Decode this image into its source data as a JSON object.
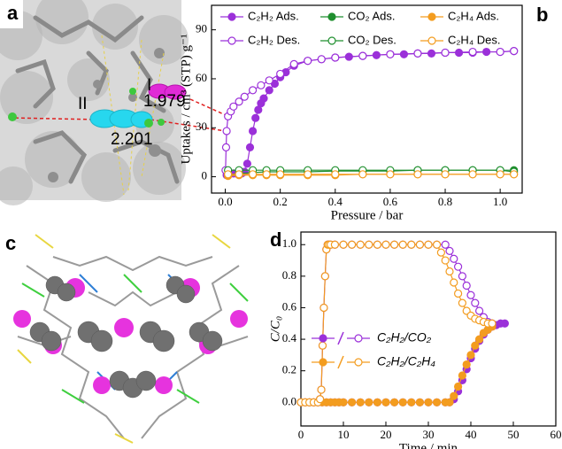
{
  "panels": {
    "labels": [
      "a",
      "b",
      "c",
      "d"
    ],
    "annotations": [
      "II",
      "I",
      "1.979",
      "2.201"
    ]
  },
  "chart_data": [
    {
      "type": "line",
      "x_label": "Pressure / bar",
      "y_label": "Uptakes / cm³ (STP) g⁻¹",
      "xlim": [
        -0.05,
        1.08
      ],
      "ylim": [
        -10,
        105
      ],
      "xticks": [
        {
          "value": 0,
          "label": "0.0"
        },
        {
          "value": 0.2,
          "label": "0.2"
        },
        {
          "value": 0.4,
          "label": "0.4"
        },
        {
          "value": 0.6,
          "label": "0.6"
        },
        {
          "value": 0.8,
          "label": "0.8"
        },
        {
          "value": 1,
          "label": "1.0"
        }
      ],
      "yticks": [
        0,
        30,
        60,
        90
      ],
      "series": [
        {
          "name": "C₂H₂ Ads.",
          "color": "#9b30d9",
          "marker": "filled",
          "x": [
            0.005,
            0.01,
            0.02,
            0.03,
            0.04,
            0.05,
            0.06,
            0.07,
            0.08,
            0.09,
            0.1,
            0.11,
            0.12,
            0.13,
            0.14,
            0.16,
            0.18,
            0.2,
            0.22,
            0.25,
            0.3,
            0.35,
            0.4,
            0.45,
            0.5,
            0.55,
            0.6,
            0.65,
            0.7,
            0.75,
            0.8,
            0.85,
            0.9,
            0.95,
            1.0,
            1.05
          ],
          "values": [
            1,
            2,
            2,
            2,
            2,
            2,
            2,
            3,
            8,
            18,
            28,
            36,
            41,
            45,
            48,
            53,
            57,
            61,
            64,
            68,
            71,
            72,
            73,
            73.5,
            74,
            74.5,
            75,
            75,
            75.5,
            75.5,
            76,
            76,
            76,
            76.5,
            76.5,
            77
          ]
        },
        {
          "name": "CO₂ Ads.",
          "color": "#1f8f2e",
          "marker": "filled",
          "x": [
            0.01,
            0.05,
            0.1,
            0.15,
            0.2,
            0.3,
            0.4,
            0.5,
            0.6,
            0.7,
            0.8,
            0.9,
            1.0,
            1.05
          ],
          "values": [
            1,
            2,
            2.5,
            3,
            3,
            3,
            3.5,
            3.5,
            3.5,
            4,
            4,
            4,
            4,
            4
          ]
        },
        {
          "name": "C₂H₄ Ads.",
          "color": "#f39c1f",
          "marker": "filled",
          "x": [
            0.01,
            0.05,
            0.1,
            0.15,
            0.2,
            0.3,
            0.4,
            0.5,
            0.6,
            0.7,
            0.8,
            0.9,
            1.0,
            1.05
          ],
          "values": [
            0.5,
            1,
            1,
            1,
            1,
            1,
            1,
            1.5,
            1.5,
            1.5,
            1.5,
            1.5,
            1.5,
            1.5
          ]
        },
        {
          "name": "C₂H₂ Des.",
          "color": "#9b30d9",
          "marker": "open",
          "x": [
            0.001,
            0.003,
            0.005,
            0.01,
            0.02,
            0.03,
            0.05,
            0.07,
            0.1,
            0.13,
            0.16,
            0.2,
            0.25,
            0.3,
            0.35,
            0.4,
            0.5,
            0.6,
            0.7,
            0.8,
            0.9,
            1.0,
            1.05
          ],
          "values": [
            4,
            18,
            28,
            37,
            40,
            43,
            46,
            49,
            53,
            56,
            59,
            63,
            69,
            71,
            72,
            73,
            74,
            75,
            75.5,
            76,
            76.5,
            76.5,
            77
          ]
        },
        {
          "name": "CO₂ Des.",
          "color": "#1f8f2e",
          "marker": "open",
          "x": [
            0.01,
            0.05,
            0.1,
            0.15,
            0.2,
            0.3,
            0.4,
            0.5,
            0.6,
            0.7,
            0.8,
            0.9,
            1.0,
            1.05
          ],
          "values": [
            4,
            4,
            4,
            4,
            4,
            4,
            4,
            4,
            4,
            4,
            4,
            4,
            4,
            3
          ]
        },
        {
          "name": "C₂H₄ Des.",
          "color": "#f39c1f",
          "marker": "open",
          "x": [
            0.01,
            0.05,
            0.1,
            0.15,
            0.2,
            0.3,
            0.4,
            0.5,
            0.6,
            0.7,
            0.8,
            0.9,
            1.0,
            1.05
          ],
          "values": [
            1.5,
            1.5,
            1.5,
            1.5,
            1.5,
            1.5,
            1.5,
            1.5,
            1.5,
            1.5,
            1.5,
            1.5,
            1.5,
            1.5
          ]
        }
      ]
    },
    {
      "type": "line",
      "x_label": "Time / min",
      "y_label": "C/C₀",
      "xlim": [
        0,
        60
      ],
      "ylim": [
        -0.15,
        1.08
      ],
      "xticks": [
        0,
        10,
        20,
        30,
        40,
        50,
        60
      ],
      "yticks": [
        {
          "value": 0,
          "label": "0.0"
        },
        {
          "value": 0.2,
          "label": "0.2"
        },
        {
          "value": 0.4,
          "label": "0.4"
        },
        {
          "value": 0.6,
          "label": "0.6"
        },
        {
          "value": 0.8,
          "label": "0.8"
        },
        {
          "value": 1,
          "label": "1.0"
        }
      ],
      "series": [
        {
          "name": "C₂H₂/CO₂",
          "color": "#9b30d9",
          "marker": "filled",
          "x": [
            0,
            1,
            2,
            3,
            4,
            5,
            6,
            7,
            8,
            9,
            10,
            12,
            14,
            16,
            18,
            20,
            22,
            24,
            26,
            28,
            30,
            32,
            34,
            35,
            36,
            37,
            38,
            39,
            40,
            41,
            42,
            43,
            44,
            45,
            46,
            47,
            48
          ],
          "values": [
            0,
            0,
            0,
            0,
            0,
            0,
            0,
            0,
            0,
            0,
            0,
            0,
            0,
            0,
            0,
            0,
            0,
            0,
            0,
            0,
            0,
            0,
            0,
            0,
            0.02,
            0.07,
            0.14,
            0.21,
            0.28,
            0.34,
            0.39,
            0.43,
            0.46,
            0.48,
            0.49,
            0.5,
            0.5
          ]
        },
        {
          "color": "#9b30d9",
          "marker": "open",
          "x": [
            0,
            1,
            2,
            3,
            4,
            4.5,
            4.8,
            5.1,
            5.4,
            5.7,
            6,
            6.3,
            6.6,
            7,
            8,
            10,
            12,
            14,
            16,
            18,
            20,
            22,
            24,
            26,
            28,
            30,
            32,
            34,
            35,
            36,
            37,
            38,
            39,
            40,
            41,
            42,
            43,
            44,
            45
          ],
          "values": [
            0,
            0,
            0,
            0,
            0,
            0.02,
            0.08,
            0.36,
            0.6,
            0.8,
            0.97,
            1,
            1,
            1,
            1,
            1,
            1,
            1,
            1,
            1,
            1,
            1,
            1,
            1,
            1,
            1,
            1,
            1,
            0.96,
            0.91,
            0.86,
            0.8,
            0.74,
            0.68,
            0.63,
            0.58,
            0.54,
            0.51,
            0.5
          ]
        },
        {
          "name": "C₂H₂/C₂H₄",
          "color": "#f39c1f",
          "marker": "filled",
          "x": [
            0,
            1,
            2,
            3,
            4,
            5,
            6,
            7,
            8,
            9,
            10,
            12,
            14,
            16,
            18,
            20,
            22,
            24,
            26,
            28,
            30,
            32,
            34,
            35,
            36,
            37,
            38,
            39,
            40,
            41,
            42,
            43,
            44,
            45
          ],
          "values": [
            0,
            0,
            0,
            0,
            0,
            0,
            0,
            0,
            0,
            0,
            0,
            0,
            0,
            0,
            0,
            0,
            0,
            0,
            0,
            0,
            0,
            0,
            0,
            0,
            0.04,
            0.1,
            0.17,
            0.24,
            0.3,
            0.36,
            0.4,
            0.44,
            0.46,
            0.48
          ]
        },
        {
          "color": "#f39c1f",
          "marker": "open",
          "x": [
            0,
            1,
            2,
            3,
            4,
            4.5,
            4.8,
            5.1,
            5.4,
            5.7,
            6,
            6.3,
            6.6,
            7,
            8,
            10,
            12,
            14,
            16,
            18,
            20,
            22,
            24,
            26,
            28,
            30,
            32,
            33,
            34,
            35,
            36,
            37,
            38,
            39,
            40,
            41,
            42,
            43,
            44,
            45
          ],
          "values": [
            0,
            0,
            0,
            0,
            0,
            0.02,
            0.08,
            0.36,
            0.6,
            0.8,
            0.97,
            1,
            1,
            1,
            1,
            1,
            1,
            1,
            1,
            1,
            1,
            1,
            1,
            1,
            1,
            1,
            1,
            0.95,
            0.9,
            0.83,
            0.76,
            0.69,
            0.63,
            0.58,
            0.55,
            0.53,
            0.52,
            0.51,
            0.5,
            0.5
          ]
        }
      ]
    }
  ]
}
